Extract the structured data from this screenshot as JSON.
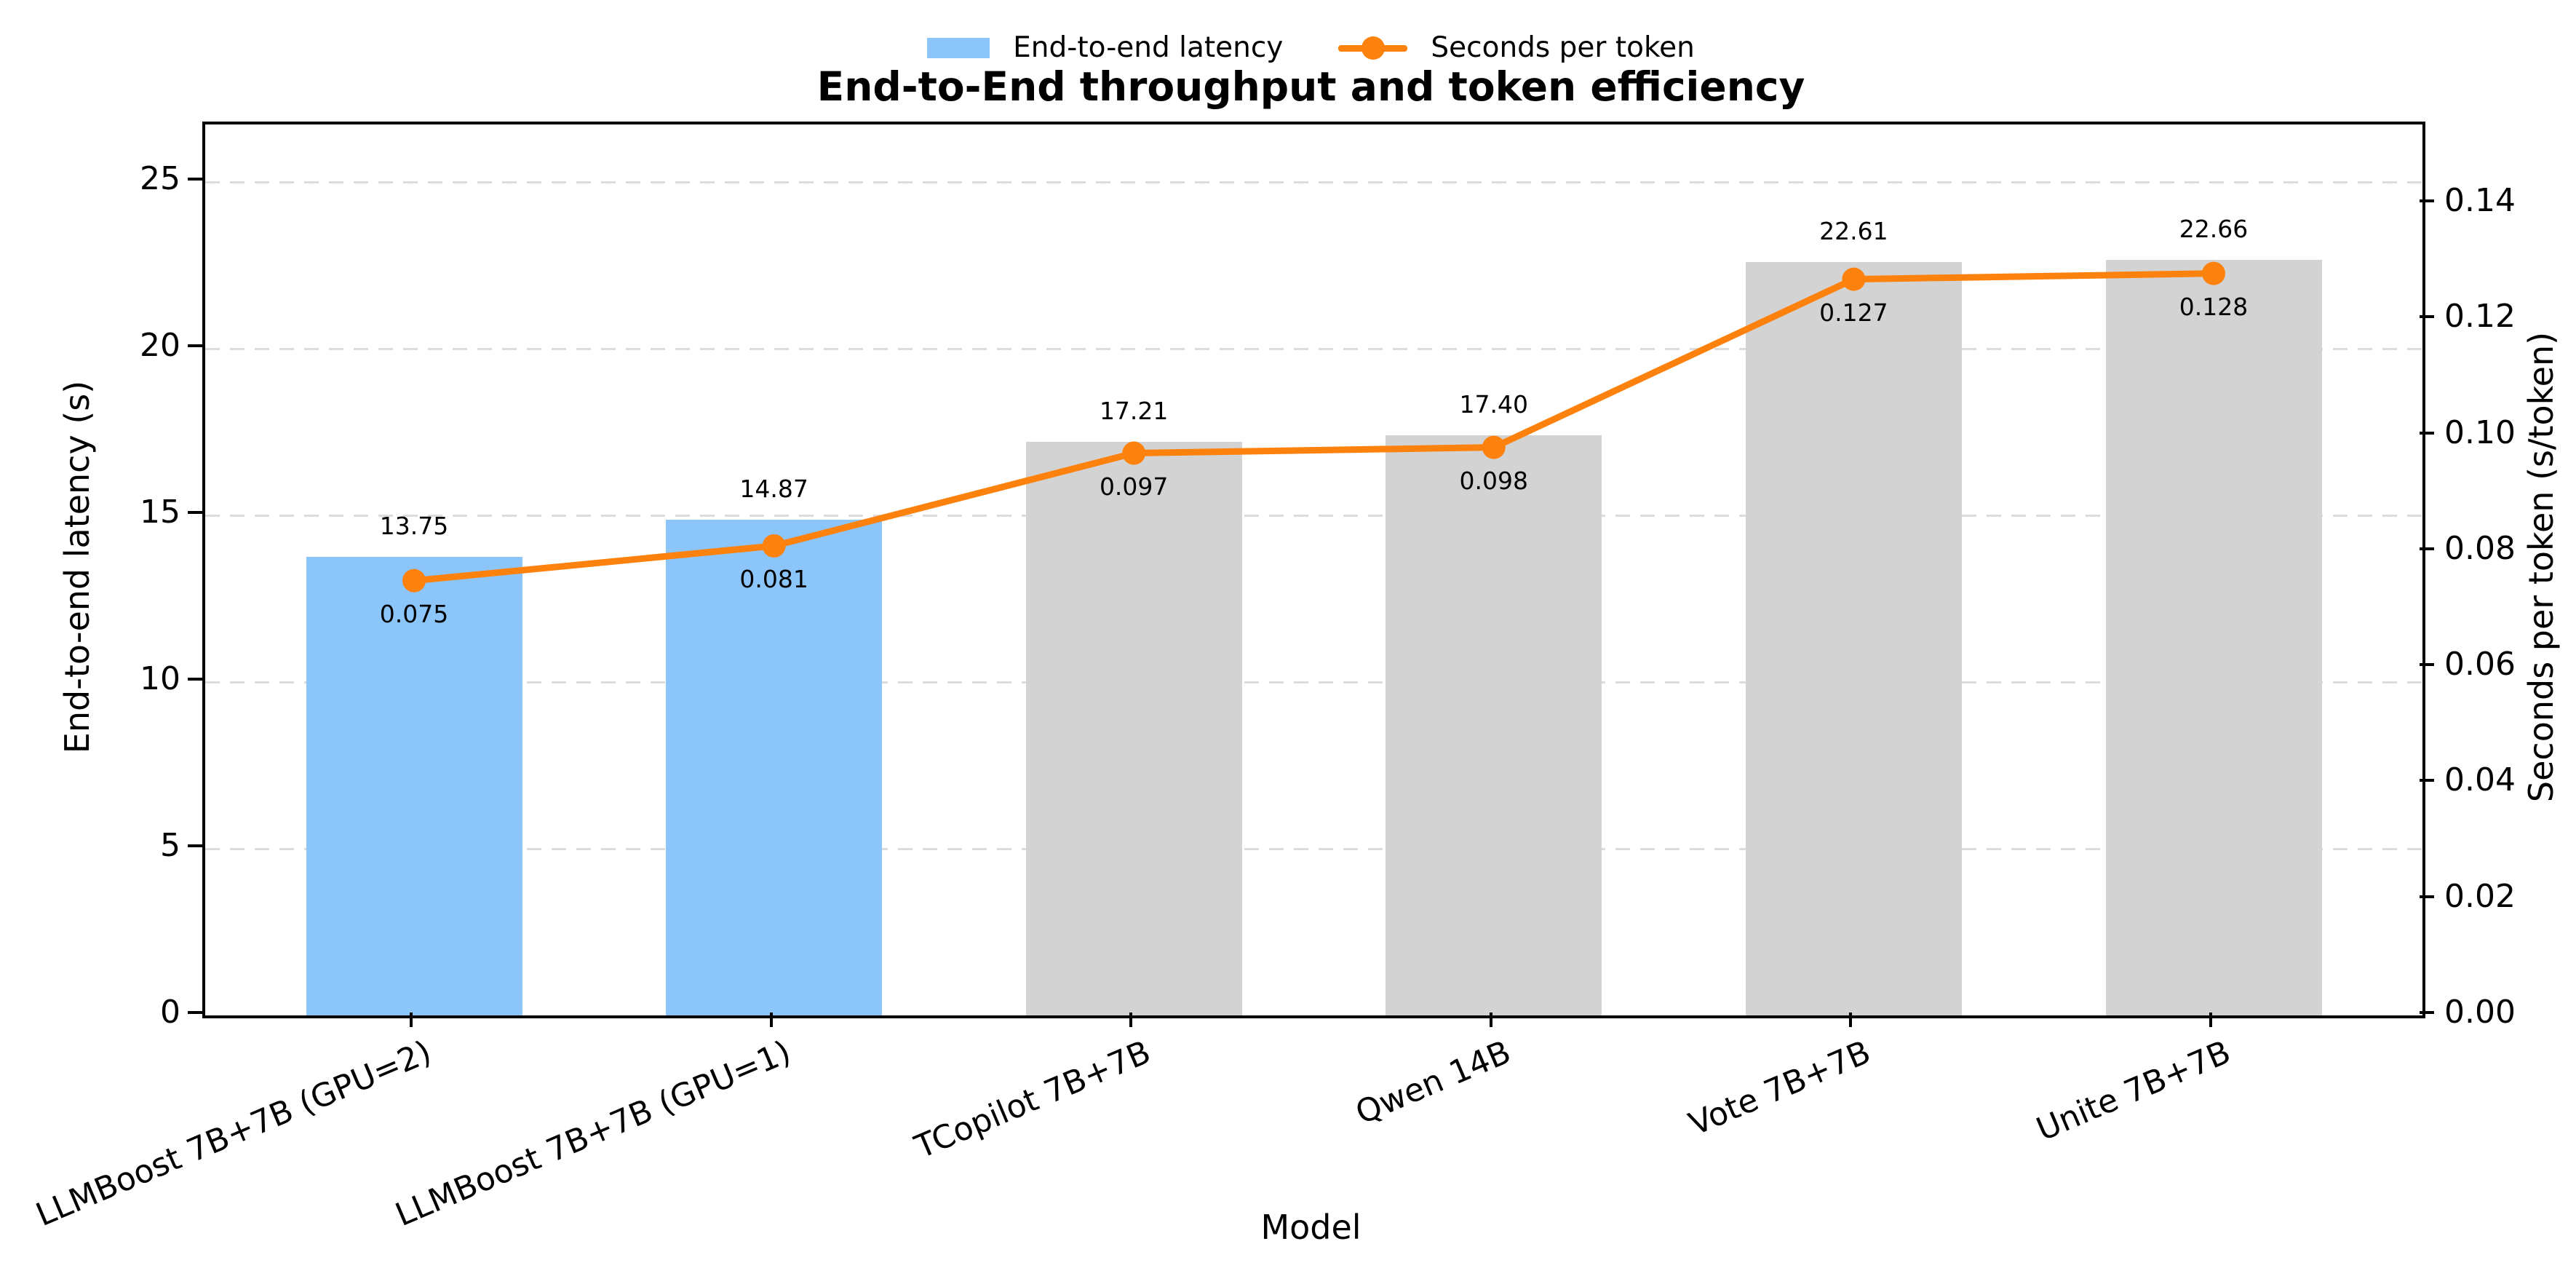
{
  "chart_data": {
    "type": "bar+line",
    "title": "End-to-End throughput and token efficiency",
    "xlabel": "Model",
    "ylabel_left": "End-to-end latency (s)",
    "ylabel_right": "Seconds per token (s/token)",
    "categories": [
      "LLMBoost 7B+7B (GPU=2)",
      "LLMBoost 7B+7B (GPU=1)",
      "TCopilot 7B+7B",
      "Qwen 14B",
      "Vote 7B+7B",
      "Unite 7B+7B"
    ],
    "series": [
      {
        "name": "End-to-end latency",
        "type": "bar",
        "axis": "left",
        "values": [
          13.75,
          14.87,
          17.21,
          17.4,
          22.61,
          22.66
        ],
        "value_labels": [
          "13.75",
          "14.87",
          "17.21",
          "17.40",
          "22.61",
          "22.66"
        ],
        "bar_colors": [
          "#8cc5fa",
          "#8cc5fa",
          "#d3d3d3",
          "#d3d3d3",
          "#d3d3d3",
          "#d3d3d3"
        ]
      },
      {
        "name": "Seconds per token",
        "type": "line",
        "axis": "right",
        "values": [
          0.075,
          0.081,
          0.097,
          0.098,
          0.127,
          0.128
        ],
        "value_labels": [
          "0.075",
          "0.081",
          "0.097",
          "0.098",
          "0.127",
          "0.128"
        ],
        "color": "#fd820d"
      }
    ],
    "axes": {
      "left_ticks": [
        "0",
        "5",
        "10",
        "15",
        "20",
        "25"
      ],
      "left_tick_values": [
        0,
        5,
        10,
        15,
        20,
        25
      ],
      "right_ticks": [
        "0.00",
        "0.02",
        "0.04",
        "0.06",
        "0.08",
        "0.10",
        "0.12",
        "0.14"
      ],
      "right_tick_values": [
        0,
        0.02,
        0.04,
        0.06,
        0.08,
        0.1,
        0.12,
        0.14
      ],
      "ylim_left": [
        0,
        26.73
      ],
      "ylim_right": [
        0,
        0.1537
      ],
      "grid": "horizontal-dashed",
      "grid_tick_values": [
        5,
        10,
        15,
        20,
        25
      ],
      "x_tick_rotation_deg": 23,
      "legend_position": "top-center"
    },
    "colors": {
      "bar_blue": "#8cc5fa",
      "bar_gray": "#d3d3d3",
      "line_orange": "#fd820d",
      "grid": "#dcdcdc",
      "spine": "#000000",
      "background": "#ffffff"
    }
  }
}
